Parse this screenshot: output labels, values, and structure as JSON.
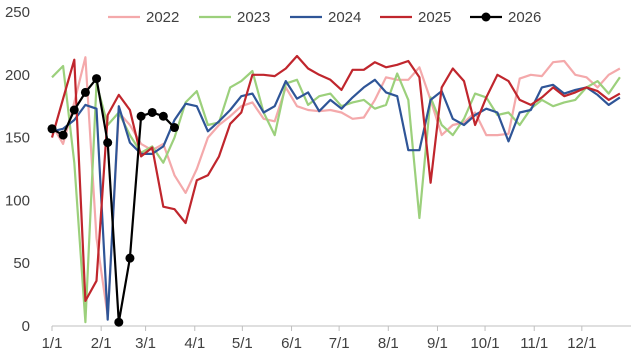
{
  "chart_data": {
    "type": "line",
    "title": "",
    "xlabel": "",
    "ylabel": "",
    "ylim": [
      0,
      250
    ],
    "yticks": [
      0,
      50,
      100,
      150,
      200,
      250
    ],
    "xticks": [
      "1/1",
      "2/1",
      "3/1",
      "4/1",
      "5/1",
      "6/1",
      "7/1",
      "8/1",
      "9/1",
      "10/1",
      "11/1",
      "12/1"
    ],
    "grid": false,
    "legend_position": "top",
    "series": [
      {
        "name": "2022",
        "color": "#f4a9ab",
        "marker": false,
        "x": [
          0,
          1,
          2,
          3,
          4,
          5,
          6,
          7,
          8,
          9,
          10,
          11,
          12,
          13,
          14,
          15,
          16,
          17,
          18,
          19,
          20,
          21,
          22,
          23,
          24,
          25,
          26,
          27,
          28,
          29,
          30,
          31,
          32,
          33,
          34,
          35,
          36,
          37,
          38,
          39,
          40,
          41,
          42,
          43,
          44,
          45,
          46,
          47,
          48,
          49,
          50,
          51
        ],
        "values": [
          160,
          145,
          178,
          214,
          70,
          8,
          170,
          160,
          145,
          140,
          145,
          120,
          106,
          125,
          150,
          160,
          167,
          175,
          178,
          165,
          163,
          190,
          175,
          172,
          171,
          172,
          170,
          165,
          166,
          180,
          198,
          196,
          196,
          206,
          180,
          152,
          160,
          162,
          170,
          152,
          152,
          153,
          197,
          200,
          199,
          210,
          211,
          200,
          198,
          190,
          200,
          205
        ]
      },
      {
        "name": "2023",
        "color": "#9cd07c",
        "marker": false,
        "x": [
          0,
          1,
          2,
          3,
          4,
          5,
          6,
          7,
          8,
          9,
          10,
          11,
          12,
          13,
          14,
          15,
          16,
          17,
          18,
          19,
          20,
          21,
          22,
          23,
          24,
          25,
          26,
          27,
          28,
          29,
          30,
          31,
          32,
          33,
          34,
          35,
          36,
          37,
          38,
          39,
          40,
          41,
          42,
          43,
          44,
          45,
          46,
          47,
          48,
          49,
          50,
          51
        ],
        "values": [
          198,
          207,
          130,
          3,
          193,
          160,
          170,
          152,
          138,
          143,
          130,
          150,
          178,
          187,
          160,
          162,
          190,
          195,
          203,
          170,
          152,
          193,
          196,
          176,
          183,
          185,
          175,
          178,
          180,
          173,
          176,
          201,
          180,
          86,
          182,
          160,
          152,
          165,
          185,
          182,
          168,
          170,
          160,
          173,
          180,
          175,
          178,
          180,
          190,
          195,
          185,
          198
        ]
      },
      {
        "name": "2024",
        "color": "#2f5597",
        "marker": false,
        "x": [
          0,
          1,
          2,
          3,
          4,
          5,
          6,
          7,
          8,
          9,
          10,
          11,
          12,
          13,
          14,
          15,
          16,
          17,
          18,
          19,
          20,
          21,
          22,
          23,
          24,
          25,
          26,
          27,
          28,
          29,
          30,
          31,
          32,
          33,
          34,
          35,
          36,
          37,
          38,
          39,
          40,
          41,
          42,
          43,
          44,
          45,
          46,
          47,
          48,
          49,
          50,
          51
        ],
        "values": [
          155,
          157,
          164,
          176,
          173,
          5,
          175,
          146,
          137,
          137,
          143,
          164,
          177,
          175,
          155,
          163,
          172,
          183,
          185,
          170,
          175,
          195,
          181,
          186,
          171,
          180,
          173,
          182,
          190,
          196,
          186,
          183,
          140,
          140,
          180,
          187,
          165,
          160,
          168,
          173,
          170,
          147,
          170,
          172,
          190,
          192,
          185,
          188,
          190,
          184,
          176,
          182
        ]
      },
      {
        "name": "2025",
        "color": "#c0262d",
        "marker": false,
        "x": [
          0,
          1,
          2,
          3,
          4,
          5,
          6,
          7,
          8,
          9,
          10,
          11,
          12,
          13,
          14,
          15,
          16,
          17,
          18,
          19,
          20,
          21,
          22,
          23,
          24,
          25,
          26,
          27,
          28,
          29,
          30,
          31,
          32,
          33,
          34,
          35,
          36,
          37,
          38,
          39,
          40,
          41,
          42,
          43,
          44,
          45,
          46,
          47,
          48,
          49,
          50,
          51
        ],
        "values": [
          150,
          181,
          212,
          20,
          36,
          168,
          184,
          172,
          135,
          142,
          95,
          93,
          82,
          116,
          120,
          135,
          161,
          170,
          200,
          200,
          199,
          205,
          215,
          205,
          200,
          196,
          188,
          204,
          204,
          210,
          206,
          208,
          211,
          198,
          114,
          190,
          205,
          195,
          160,
          182,
          200,
          195,
          180,
          176,
          182,
          190,
          183,
          186,
          190,
          187,
          180,
          185
        ]
      },
      {
        "name": "2026",
        "color": "#000000",
        "marker": true,
        "x": [
          0,
          1,
          2,
          3,
          4,
          5,
          6,
          7,
          8,
          9,
          10,
          11
        ],
        "values": [
          157,
          152,
          172,
          186,
          197,
          146,
          3,
          54,
          167,
          170,
          167,
          158
        ]
      }
    ]
  }
}
